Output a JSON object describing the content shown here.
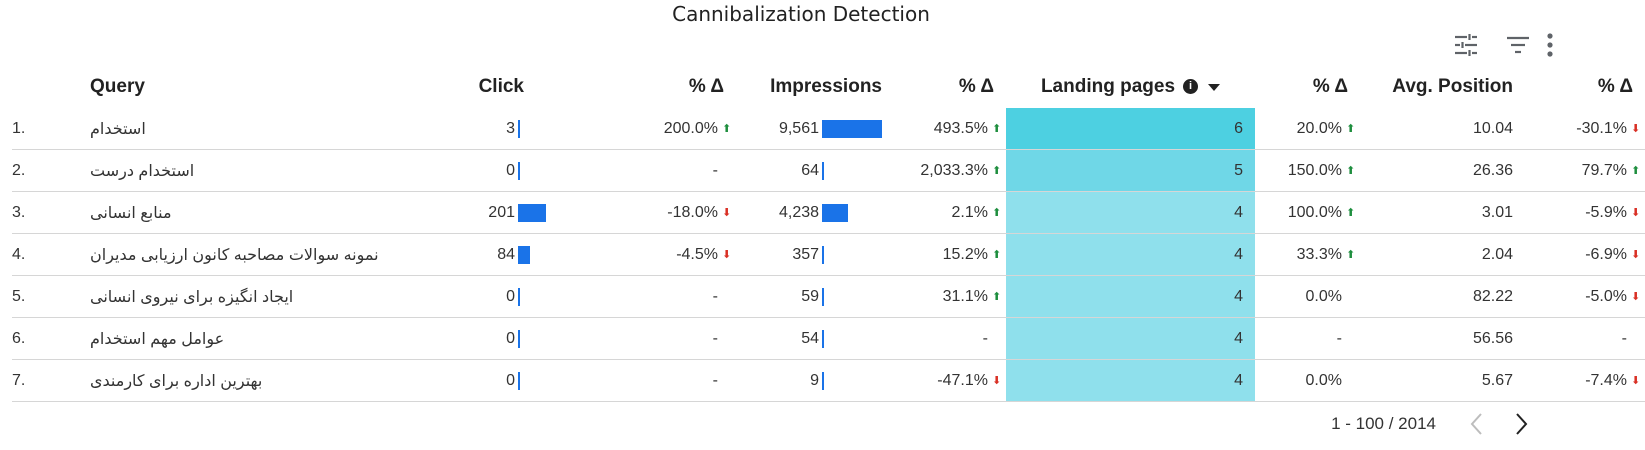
{
  "title": "Cannibalization Detection",
  "toolbar": {
    "icons": [
      "sliders-icon",
      "filter-icon",
      "more-vert-icon"
    ]
  },
  "columns": {
    "query": "Query",
    "click": "Click",
    "click_delta": "% Δ",
    "impressions": "Impressions",
    "impressions_delta": "% Δ",
    "landing_pages": "Landing pages",
    "landing_pages_info": "i",
    "landing_delta": "% Δ",
    "avg_position": "Avg. Position",
    "position_delta": "% Δ"
  },
  "colors": {
    "bar": "#1a73e8",
    "heat_high": "#4dd0e1",
    "heat_mid": "#6fd7e7",
    "heat_low": "#8fe0ec",
    "up": "#1e8e3e",
    "down": "#d93025"
  },
  "rows": [
    {
      "idx": "1.",
      "query": "استخدام",
      "click": "3",
      "click_bar": 0.0,
      "click_delta": "200.0%",
      "click_dir": "up",
      "impressions": "9,561",
      "imp_bar": 1.0,
      "imp_delta": "493.5%",
      "imp_dir": "up",
      "landing": "6",
      "landing_delta": "20.0%",
      "landing_dir": "up",
      "pos": "10.04",
      "pos_delta": "-30.1%",
      "pos_dir": "down"
    },
    {
      "idx": "2.",
      "query": "استخدام درست",
      "click": "0",
      "click_bar": 0.0,
      "click_delta": "-",
      "click_dir": "",
      "impressions": "64",
      "imp_bar": 0.0,
      "imp_delta": "2,033.3%",
      "imp_dir": "up",
      "landing": "5",
      "landing_delta": "150.0%",
      "landing_dir": "up",
      "pos": "26.36",
      "pos_delta": "79.7%",
      "pos_dir": "up"
    },
    {
      "idx": "3.",
      "query": "منابع انسانی",
      "click": "201",
      "click_bar": 1.0,
      "click_delta": "-18.0%",
      "click_dir": "down",
      "impressions": "4,238",
      "imp_bar": 0.44,
      "imp_delta": "2.1%",
      "imp_dir": "up",
      "landing": "4",
      "landing_delta": "100.0%",
      "landing_dir": "up",
      "pos": "3.01",
      "pos_delta": "-5.9%",
      "pos_dir": "down"
    },
    {
      "idx": "4.",
      "query": "نمونه سوالات مصاحبه کانون ارزیابی مدیران",
      "click": "84",
      "click_bar": 0.42,
      "click_delta": "-4.5%",
      "click_dir": "down",
      "impressions": "357",
      "imp_bar": 0.04,
      "imp_delta": "15.2%",
      "imp_dir": "up",
      "landing": "4",
      "landing_delta": "33.3%",
      "landing_dir": "up",
      "pos": "2.04",
      "pos_delta": "-6.9%",
      "pos_dir": "down"
    },
    {
      "idx": "5.",
      "query": "ایجاد انگیزه برای نیروی انسانی",
      "click": "0",
      "click_bar": 0.0,
      "click_delta": "-",
      "click_dir": "",
      "impressions": "59",
      "imp_bar": 0.0,
      "imp_delta": "31.1%",
      "imp_dir": "up",
      "landing": "4",
      "landing_delta": "0.0%",
      "landing_dir": "",
      "pos": "82.22",
      "pos_delta": "-5.0%",
      "pos_dir": "down"
    },
    {
      "idx": "6.",
      "query": "عوامل مهم استخدام",
      "click": "0",
      "click_bar": 0.0,
      "click_delta": "-",
      "click_dir": "",
      "impressions": "54",
      "imp_bar": 0.0,
      "imp_delta": "-",
      "imp_dir": "",
      "landing": "4",
      "landing_delta": "-",
      "landing_dir": "",
      "pos": "56.56",
      "pos_delta": "-",
      "pos_dir": ""
    },
    {
      "idx": "7.",
      "query": "بهترین اداره برای کارمندی",
      "click": "0",
      "click_bar": 0.0,
      "click_delta": "-",
      "click_dir": "",
      "impressions": "9",
      "imp_bar": 0.0,
      "imp_delta": "-47.1%",
      "imp_dir": "down",
      "landing": "4",
      "landing_delta": "0.0%",
      "landing_dir": "",
      "pos": "5.67",
      "pos_delta": "-7.4%",
      "pos_dir": "down"
    }
  ],
  "pager": {
    "range": "1 - 100 / 2014"
  }
}
